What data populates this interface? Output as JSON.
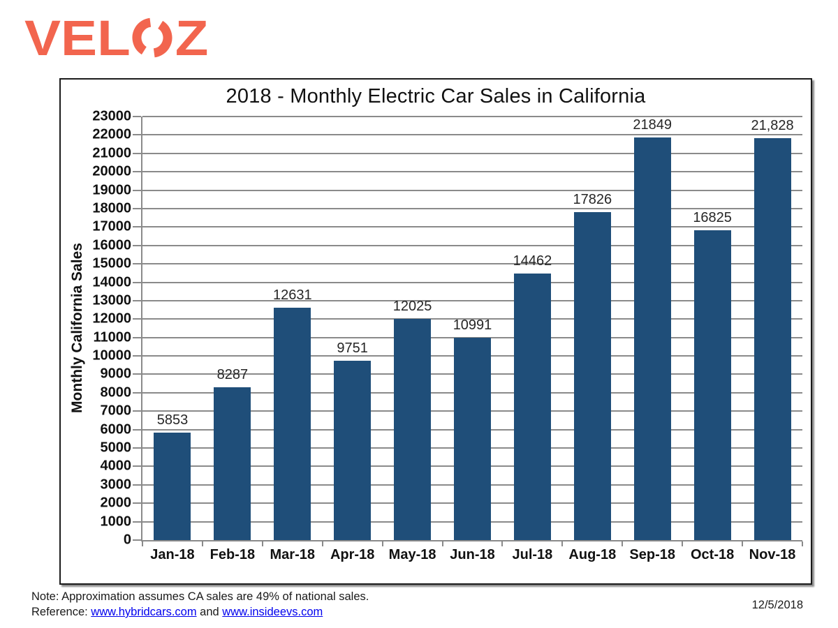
{
  "logo": {
    "brand_v": "V",
    "brand_e": "E",
    "brand_l": "L",
    "brand_z": "Z",
    "color": "#F2654E"
  },
  "chart_data": {
    "type": "bar",
    "title": "2018 - Monthly Electric Car Sales in California",
    "ylabel": "Monthly California Sales",
    "xlabel": "",
    "categories": [
      "Jan-18",
      "Feb-18",
      "Mar-18",
      "Apr-18",
      "May-18",
      "Jun-18",
      "Jul-18",
      "Aug-18",
      "Sep-18",
      "Oct-18",
      "Nov-18"
    ],
    "values": [
      5853,
      8287,
      12631,
      9751,
      12025,
      10991,
      14462,
      17826,
      21849,
      16825,
      21828
    ],
    "value_labels": [
      "5853",
      "8287",
      "12631",
      "9751",
      "12025",
      "10991",
      "14462",
      "17826",
      "21849",
      "16825",
      "21,828"
    ],
    "ylim": [
      0,
      23000
    ],
    "ytick_step": 1000,
    "bar_color": "#1F4E79",
    "grid": true,
    "legend_position": "none"
  },
  "footer": {
    "note": "Note:  Approximation assumes CA sales are 49% of national sales.",
    "reference_prefix": "Reference: ",
    "link1": "www.hybridcars.com",
    "separator": " and ",
    "link2": "www.insideevs.com",
    "date": "12/5/2018"
  }
}
